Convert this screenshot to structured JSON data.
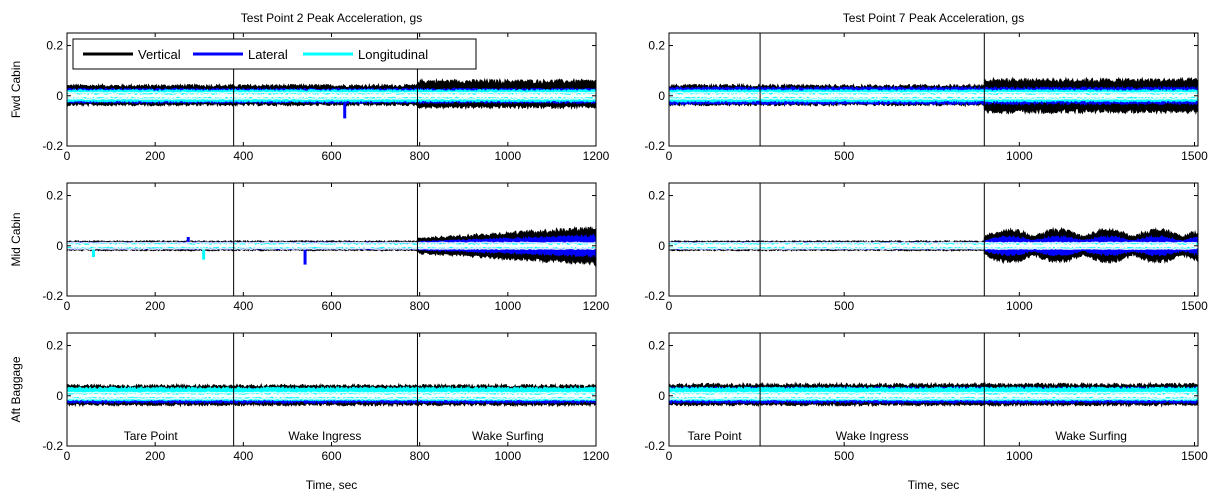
{
  "figure": {
    "ylabels": [
      "Fwd Cabin",
      "Mid Cabin",
      "Aft Baggage"
    ],
    "legend": [
      "Vertical",
      "Lateral",
      "Longitudinal"
    ],
    "xlabel": "Time, sec"
  },
  "chart_data": [
    {
      "type": "line",
      "title": "Test Point 2 Peak Acceleration, gs",
      "xlim": [
        0,
        1200
      ],
      "xticks": [
        0,
        200,
        400,
        600,
        800,
        1000,
        1200
      ],
      "ylim": [
        -0.2,
        0.25
      ],
      "yticks": [
        -0.2,
        0,
        0.2
      ],
      "phase_boundaries": [
        378,
        795
      ],
      "phases": [
        {
          "label": "Tare Point",
          "center": 190
        },
        {
          "label": "Wake Ingress",
          "center": 585
        },
        {
          "label": "Wake Surfing",
          "center": 1000
        }
      ],
      "panels": [
        {
          "ylabel": "Fwd Cabin",
          "series": [
            {
              "name": "Vertical",
              "color": "#000000",
              "segments": [
                [
                  0,
                  795,
                  0.045,
                  -0.04
                ],
                [
                  795,
                  1200,
                  0.065,
                  -0.05
                ]
              ]
            },
            {
              "name": "Lateral",
              "color": "#0000ff",
              "segments": [
                [
                  0,
                  1200,
                  0.03,
                  -0.03
                ]
              ],
              "spikes": [
                [
                  630,
                  -0.09
                ]
              ]
            },
            {
              "name": "Longitudinal",
              "color": "#00ffff",
              "segments": [
                [
                  0,
                  1200,
                  0.025,
                  -0.025
                ]
              ]
            }
          ]
        },
        {
          "ylabel": "Mid Cabin",
          "series": [
            {
              "name": "Vertical",
              "color": "#000000",
              "segments": [
                [
                  0,
                  795,
                  0.02,
                  -0.02
                ],
                [
                  795,
                  1200,
                  0.08,
                  -0.08
                ]
              ]
            },
            {
              "name": "Lateral",
              "color": "#0000ff",
              "segments": [
                [
                  0,
                  795,
                  0.015,
                  -0.015
                ],
                [
                  795,
                  1200,
                  0.045,
                  -0.045
                ]
              ],
              "spikes": [
                [
                  540,
                  -0.075
                ],
                [
                  275,
                  0.035
                ]
              ]
            },
            {
              "name": "Longitudinal",
              "color": "#00ffff",
              "segments": [
                [
                  0,
                  1200,
                  0.01,
                  -0.01
                ]
              ],
              "spikes": [
                [
                  60,
                  -0.045
                ],
                [
                  310,
                  -0.055
                ]
              ]
            }
          ]
        },
        {
          "ylabel": "Aft Baggage",
          "series": [
            {
              "name": "Vertical",
              "color": "#000000",
              "segments": [
                [
                  0,
                  1200,
                  0.045,
                  -0.04
                ]
              ]
            },
            {
              "name": "Lateral",
              "color": "#0000ff",
              "segments": [
                [
                  0,
                  1200,
                  0.03,
                  -0.03
                ]
              ]
            },
            {
              "name": "Longitudinal",
              "color": "#00ffff",
              "segments": [
                [
                  0,
                  1200,
                  0.035,
                  -0.02
                ]
              ]
            }
          ]
        }
      ]
    },
    {
      "type": "line",
      "title": "Test Point 7 Peak Acceleration, gs",
      "xlim": [
        0,
        1510
      ],
      "xticks": [
        0,
        500,
        1000,
        1500
      ],
      "ylim": [
        -0.2,
        0.25
      ],
      "yticks": [
        -0.2,
        0,
        0.2
      ],
      "phase_boundaries": [
        260,
        900
      ],
      "phases": [
        {
          "label": "Tare Point",
          "center": 130
        },
        {
          "label": "Wake Ingress",
          "center": 580
        },
        {
          "label": "Wake Surfing",
          "center": 1205
        }
      ],
      "panels": [
        {
          "ylabel": "Fwd Cabin",
          "series": [
            {
              "name": "Vertical",
              "color": "#000000",
              "segments": [
                [
                  0,
                  900,
                  0.045,
                  -0.04
                ],
                [
                  900,
                  1510,
                  0.07,
                  -0.07
                ]
              ]
            },
            {
              "name": "Lateral",
              "color": "#0000ff",
              "segments": [
                [
                  0,
                  1510,
                  0.035,
                  -0.035
                ]
              ]
            },
            {
              "name": "Longitudinal",
              "color": "#00ffff",
              "segments": [
                [
                  0,
                  1510,
                  0.025,
                  -0.025
                ]
              ]
            }
          ]
        },
        {
          "ylabel": "Mid Cabin",
          "series": [
            {
              "name": "Vertical",
              "color": "#000000",
              "segments": [
                [
                  0,
                  900,
                  0.02,
                  -0.02
                ],
                [
                  900,
                  1510,
                  0.07,
                  -0.07
                ]
              ]
            },
            {
              "name": "Lateral",
              "color": "#0000ff",
              "segments": [
                [
                  0,
                  900,
                  0.015,
                  -0.015
                ],
                [
                  900,
                  1510,
                  0.04,
                  -0.04
                ]
              ]
            },
            {
              "name": "Longitudinal",
              "color": "#00ffff",
              "segments": [
                [
                  0,
                  1510,
                  0.012,
                  -0.012
                ]
              ]
            }
          ]
        },
        {
          "ylabel": "Aft Baggage",
          "series": [
            {
              "name": "Vertical",
              "color": "#000000",
              "segments": [
                [
                  0,
                  1510,
                  0.05,
                  -0.04
                ]
              ]
            },
            {
              "name": "Lateral",
              "color": "#0000ff",
              "segments": [
                [
                  0,
                  1510,
                  0.035,
                  -0.03
                ]
              ]
            },
            {
              "name": "Longitudinal",
              "color": "#00ffff",
              "segments": [
                [
                  0,
                  1510,
                  0.035,
                  -0.02
                ]
              ]
            }
          ]
        }
      ]
    }
  ]
}
